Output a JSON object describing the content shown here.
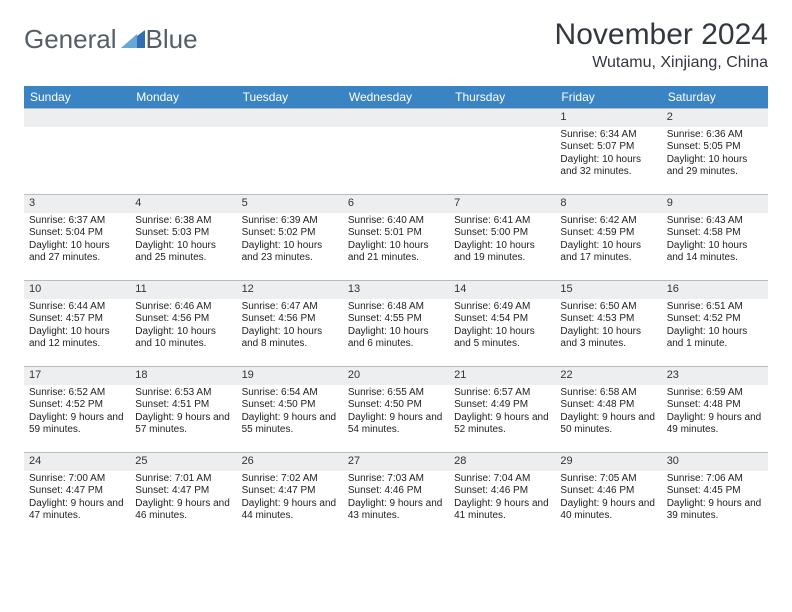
{
  "brand": {
    "first": "General",
    "second": "Blue"
  },
  "colors": {
    "header_bg": "#3b84c4",
    "header_text": "#ffffff",
    "daynum_bg": "#eceef0",
    "daynum_border": "#b7bcc2",
    "logo_text": "#555d66",
    "logo_accent": "#2f6fb0"
  },
  "title": "November 2024",
  "location": "Wutamu, Xinjiang, China",
  "day_names": [
    "Sunday",
    "Monday",
    "Tuesday",
    "Wednesday",
    "Thursday",
    "Friday",
    "Saturday"
  ],
  "weeks": [
    [
      {
        "n": "",
        "sr": "",
        "ss": "",
        "dl": ""
      },
      {
        "n": "",
        "sr": "",
        "ss": "",
        "dl": ""
      },
      {
        "n": "",
        "sr": "",
        "ss": "",
        "dl": ""
      },
      {
        "n": "",
        "sr": "",
        "ss": "",
        "dl": ""
      },
      {
        "n": "",
        "sr": "",
        "ss": "",
        "dl": ""
      },
      {
        "n": "1",
        "sr": "Sunrise: 6:34 AM",
        "ss": "Sunset: 5:07 PM",
        "dl": "Daylight: 10 hours and 32 minutes."
      },
      {
        "n": "2",
        "sr": "Sunrise: 6:36 AM",
        "ss": "Sunset: 5:05 PM",
        "dl": "Daylight: 10 hours and 29 minutes."
      }
    ],
    [
      {
        "n": "3",
        "sr": "Sunrise: 6:37 AM",
        "ss": "Sunset: 5:04 PM",
        "dl": "Daylight: 10 hours and 27 minutes."
      },
      {
        "n": "4",
        "sr": "Sunrise: 6:38 AM",
        "ss": "Sunset: 5:03 PM",
        "dl": "Daylight: 10 hours and 25 minutes."
      },
      {
        "n": "5",
        "sr": "Sunrise: 6:39 AM",
        "ss": "Sunset: 5:02 PM",
        "dl": "Daylight: 10 hours and 23 minutes."
      },
      {
        "n": "6",
        "sr": "Sunrise: 6:40 AM",
        "ss": "Sunset: 5:01 PM",
        "dl": "Daylight: 10 hours and 21 minutes."
      },
      {
        "n": "7",
        "sr": "Sunrise: 6:41 AM",
        "ss": "Sunset: 5:00 PM",
        "dl": "Daylight: 10 hours and 19 minutes."
      },
      {
        "n": "8",
        "sr": "Sunrise: 6:42 AM",
        "ss": "Sunset: 4:59 PM",
        "dl": "Daylight: 10 hours and 17 minutes."
      },
      {
        "n": "9",
        "sr": "Sunrise: 6:43 AM",
        "ss": "Sunset: 4:58 PM",
        "dl": "Daylight: 10 hours and 14 minutes."
      }
    ],
    [
      {
        "n": "10",
        "sr": "Sunrise: 6:44 AM",
        "ss": "Sunset: 4:57 PM",
        "dl": "Daylight: 10 hours and 12 minutes."
      },
      {
        "n": "11",
        "sr": "Sunrise: 6:46 AM",
        "ss": "Sunset: 4:56 PM",
        "dl": "Daylight: 10 hours and 10 minutes."
      },
      {
        "n": "12",
        "sr": "Sunrise: 6:47 AM",
        "ss": "Sunset: 4:56 PM",
        "dl": "Daylight: 10 hours and 8 minutes."
      },
      {
        "n": "13",
        "sr": "Sunrise: 6:48 AM",
        "ss": "Sunset: 4:55 PM",
        "dl": "Daylight: 10 hours and 6 minutes."
      },
      {
        "n": "14",
        "sr": "Sunrise: 6:49 AM",
        "ss": "Sunset: 4:54 PM",
        "dl": "Daylight: 10 hours and 5 minutes."
      },
      {
        "n": "15",
        "sr": "Sunrise: 6:50 AM",
        "ss": "Sunset: 4:53 PM",
        "dl": "Daylight: 10 hours and 3 minutes."
      },
      {
        "n": "16",
        "sr": "Sunrise: 6:51 AM",
        "ss": "Sunset: 4:52 PM",
        "dl": "Daylight: 10 hours and 1 minute."
      }
    ],
    [
      {
        "n": "17",
        "sr": "Sunrise: 6:52 AM",
        "ss": "Sunset: 4:52 PM",
        "dl": "Daylight: 9 hours and 59 minutes."
      },
      {
        "n": "18",
        "sr": "Sunrise: 6:53 AM",
        "ss": "Sunset: 4:51 PM",
        "dl": "Daylight: 9 hours and 57 minutes."
      },
      {
        "n": "19",
        "sr": "Sunrise: 6:54 AM",
        "ss": "Sunset: 4:50 PM",
        "dl": "Daylight: 9 hours and 55 minutes."
      },
      {
        "n": "20",
        "sr": "Sunrise: 6:55 AM",
        "ss": "Sunset: 4:50 PM",
        "dl": "Daylight: 9 hours and 54 minutes."
      },
      {
        "n": "21",
        "sr": "Sunrise: 6:57 AM",
        "ss": "Sunset: 4:49 PM",
        "dl": "Daylight: 9 hours and 52 minutes."
      },
      {
        "n": "22",
        "sr": "Sunrise: 6:58 AM",
        "ss": "Sunset: 4:48 PM",
        "dl": "Daylight: 9 hours and 50 minutes."
      },
      {
        "n": "23",
        "sr": "Sunrise: 6:59 AM",
        "ss": "Sunset: 4:48 PM",
        "dl": "Daylight: 9 hours and 49 minutes."
      }
    ],
    [
      {
        "n": "24",
        "sr": "Sunrise: 7:00 AM",
        "ss": "Sunset: 4:47 PM",
        "dl": "Daylight: 9 hours and 47 minutes."
      },
      {
        "n": "25",
        "sr": "Sunrise: 7:01 AM",
        "ss": "Sunset: 4:47 PM",
        "dl": "Daylight: 9 hours and 46 minutes."
      },
      {
        "n": "26",
        "sr": "Sunrise: 7:02 AM",
        "ss": "Sunset: 4:47 PM",
        "dl": "Daylight: 9 hours and 44 minutes."
      },
      {
        "n": "27",
        "sr": "Sunrise: 7:03 AM",
        "ss": "Sunset: 4:46 PM",
        "dl": "Daylight: 9 hours and 43 minutes."
      },
      {
        "n": "28",
        "sr": "Sunrise: 7:04 AM",
        "ss": "Sunset: 4:46 PM",
        "dl": "Daylight: 9 hours and 41 minutes."
      },
      {
        "n": "29",
        "sr": "Sunrise: 7:05 AM",
        "ss": "Sunset: 4:46 PM",
        "dl": "Daylight: 9 hours and 40 minutes."
      },
      {
        "n": "30",
        "sr": "Sunrise: 7:06 AM",
        "ss": "Sunset: 4:45 PM",
        "dl": "Daylight: 9 hours and 39 minutes."
      }
    ]
  ]
}
